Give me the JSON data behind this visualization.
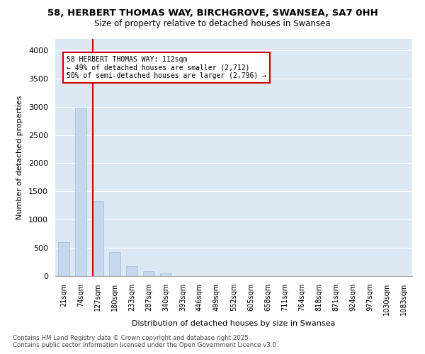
{
  "title": "58, HERBERT THOMAS WAY, BIRCHGROVE, SWANSEA, SA7 0HH",
  "subtitle": "Size of property relative to detached houses in Swansea",
  "xlabel": "Distribution of detached houses by size in Swansea",
  "ylabel": "Number of detached properties",
  "categories": [
    "21sqm",
    "74sqm",
    "127sqm",
    "180sqm",
    "233sqm",
    "287sqm",
    "340sqm",
    "393sqm",
    "446sqm",
    "499sqm",
    "552sqm",
    "605sqm",
    "658sqm",
    "711sqm",
    "764sqm",
    "818sqm",
    "871sqm",
    "924sqm",
    "977sqm",
    "1030sqm",
    "1083sqm"
  ],
  "bar_heights": [
    600,
    2980,
    1330,
    430,
    175,
    85,
    45,
    0,
    0,
    0,
    0,
    0,
    0,
    0,
    0,
    0,
    0,
    0,
    0,
    0,
    0
  ],
  "bar_color": "#c5d8ed",
  "bar_edge_color": "#a0bcd8",
  "property_sqm": 112,
  "annotation_line1": "58 HERBERT THOMAS WAY: 112sqm",
  "annotation_line2": "← 49% of detached houses are smaller (2,712)",
  "annotation_line3": "50% of semi-detached houses are larger (2,796) →",
  "annotation_box_color": "#ffffff",
  "annotation_border_color": "#cc0000",
  "property_line_color": "#cc0000",
  "ylim": [
    0,
    4200
  ],
  "yticks": [
    0,
    500,
    1000,
    1500,
    2000,
    2500,
    3000,
    3500,
    4000
  ],
  "footnote1": "Contains HM Land Registry data © Crown copyright and database right 2025.",
  "footnote2": "Contains public sector information licensed under the Open Government Licence v3.0.",
  "bg_color": "#dde8f5",
  "fig_bg_color": "#ffffff",
  "title_fontsize": 9.5,
  "subtitle_fontsize": 8.5,
  "grid_color": "#ffffff"
}
